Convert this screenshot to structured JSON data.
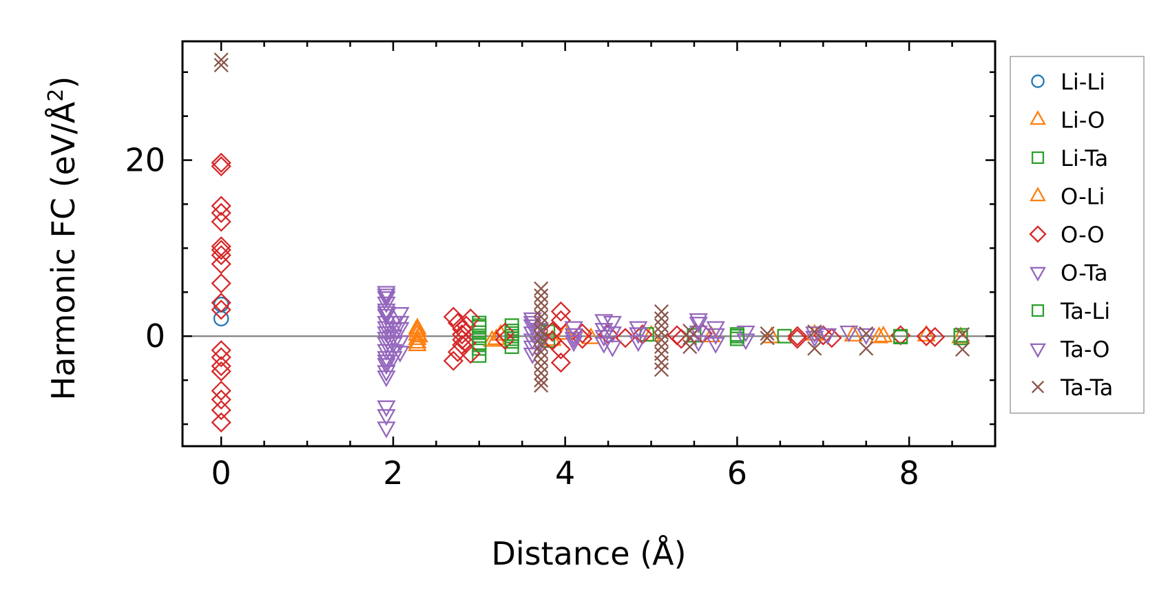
{
  "chart_data": {
    "type": "scatter",
    "title": "",
    "xlabel": "Distance (Å)",
    "ylabel_main": "Harmonic FC (eV/Å",
    "ylabel_sup": "2",
    "ylabel_tail": ")",
    "xlim": [
      -0.45,
      9.0
    ],
    "ylim": [
      -12.5,
      33.5
    ],
    "xticks": [
      0,
      2,
      4,
      6,
      8
    ],
    "xtick_labels": [
      "0",
      "2",
      "4",
      "6",
      "8"
    ],
    "yticks": [
      0,
      20
    ],
    "ytick_labels": [
      "0",
      "20"
    ],
    "zero_line": 0,
    "grid": false,
    "legend_placement": "outside-right",
    "series": [
      {
        "name": "Li-Li",
        "marker": "circle",
        "color": "#1f77b4",
        "points": [
          [
            0,
            2.0
          ],
          [
            0,
            3.6
          ]
        ]
      },
      {
        "name": "Li-O",
        "marker": "triangle-up",
        "color": "#ff7f0e",
        "points": [
          [
            2.28,
            0.6
          ],
          [
            2.28,
            0.2
          ],
          [
            2.28,
            -0.3
          ],
          [
            2.28,
            -0.7
          ],
          [
            2.3,
            0.0
          ],
          [
            3.2,
            -0.3
          ],
          [
            3.25,
            0.2
          ],
          [
            3.85,
            -0.4
          ],
          [
            4.3,
            -0.2
          ],
          [
            5.0,
            0.1
          ],
          [
            6.4,
            -0.1
          ],
          [
            7.35,
            0.1
          ],
          [
            7.7,
            0.0
          ],
          [
            8.2,
            0.1
          ],
          [
            8.6,
            -0.1
          ]
        ]
      },
      {
        "name": "Li-Ta",
        "marker": "square",
        "color": "#2ca02c",
        "points": [
          [
            3.0,
            1.5
          ],
          [
            3.0,
            1.0
          ],
          [
            3.0,
            0.4
          ],
          [
            3.0,
            -0.2
          ],
          [
            3.0,
            -0.8
          ],
          [
            3.0,
            -1.4
          ],
          [
            3.0,
            -2.2
          ],
          [
            3.38,
            1.2
          ],
          [
            3.38,
            0.6
          ],
          [
            3.38,
            0.0
          ],
          [
            3.38,
            -0.6
          ],
          [
            3.38,
            -1.2
          ],
          [
            3.8,
            0.5
          ],
          [
            3.8,
            -0.5
          ],
          [
            4.95,
            0.2
          ],
          [
            5.5,
            0.1
          ],
          [
            6.0,
            0.2
          ],
          [
            6.0,
            -0.3
          ],
          [
            6.55,
            0.0
          ],
          [
            7.9,
            0.0
          ],
          [
            8.6,
            0.1
          ],
          [
            8.6,
            -0.2
          ]
        ]
      },
      {
        "name": "O-Li",
        "marker": "triangle-up",
        "color": "#ff7f0e",
        "points": [
          [
            2.28,
            0.9
          ],
          [
            2.28,
            -1.0
          ],
          [
            3.15,
            -0.5
          ],
          [
            4.0,
            0.3
          ],
          [
            5.7,
            0.0
          ],
          [
            6.9,
            0.2
          ],
          [
            7.65,
            -0.1
          ]
        ]
      },
      {
        "name": "O-O",
        "marker": "diamond",
        "color": "#d62728",
        "points": [
          [
            0,
            19.7
          ],
          [
            0,
            19.3
          ],
          [
            0,
            14.8
          ],
          [
            0,
            14.0
          ],
          [
            0,
            13.0
          ],
          [
            0,
            10.2
          ],
          [
            0,
            9.8
          ],
          [
            0,
            9.2
          ],
          [
            0,
            8.2
          ],
          [
            0,
            6.0
          ],
          [
            0,
            3.8
          ],
          [
            0,
            3.0
          ],
          [
            0,
            -1.6
          ],
          [
            0,
            -2.4
          ],
          [
            0,
            -3.4
          ],
          [
            0,
            -4.0
          ],
          [
            0,
            -6.2
          ],
          [
            0,
            -7.2
          ],
          [
            0,
            -8.4
          ],
          [
            0,
            -9.8
          ],
          [
            2.7,
            2.2
          ],
          [
            2.75,
            1.5
          ],
          [
            2.8,
            0.8
          ],
          [
            2.8,
            0.2
          ],
          [
            2.8,
            -0.4
          ],
          [
            2.8,
            -1.0
          ],
          [
            2.75,
            -1.8
          ],
          [
            2.7,
            -2.8
          ],
          [
            2.85,
            1.2
          ],
          [
            2.85,
            -0.8
          ],
          [
            2.9,
            2.0
          ],
          [
            2.9,
            -2.0
          ],
          [
            3.3,
            0.4
          ],
          [
            3.3,
            -0.4
          ],
          [
            3.95,
            2.8
          ],
          [
            3.95,
            1.8
          ],
          [
            3.95,
            -1.5
          ],
          [
            3.95,
            -3.0
          ],
          [
            3.85,
            0.5
          ],
          [
            3.85,
            -0.5
          ],
          [
            4.2,
            0.3
          ],
          [
            4.2,
            -0.3
          ],
          [
            4.5,
            0.2
          ],
          [
            4.7,
            -0.2
          ],
          [
            4.9,
            0.2
          ],
          [
            5.3,
            0.1
          ],
          [
            5.35,
            -0.3
          ],
          [
            5.6,
            0.3
          ],
          [
            6.7,
            0.0
          ],
          [
            6.7,
            -0.3
          ],
          [
            7.0,
            0.1
          ],
          [
            7.1,
            -0.2
          ],
          [
            7.9,
            0.1
          ],
          [
            8.2,
            0.0
          ],
          [
            8.3,
            -0.1
          ]
        ]
      },
      {
        "name": "O-Ta",
        "marker": "triangle-down",
        "color": "#9467bd",
        "points": [
          [
            1.92,
            5.0
          ],
          [
            1.92,
            4.4
          ],
          [
            1.92,
            3.8
          ],
          [
            1.92,
            3.0
          ],
          [
            1.92,
            2.4
          ],
          [
            1.92,
            1.6
          ],
          [
            1.92,
            1.0
          ],
          [
            1.92,
            0.4
          ],
          [
            1.92,
            -0.2
          ],
          [
            1.92,
            -0.8
          ],
          [
            1.92,
            -1.6
          ],
          [
            1.92,
            -2.4
          ],
          [
            1.92,
            -3.2
          ],
          [
            1.92,
            -4.0
          ],
          [
            1.92,
            -4.6
          ],
          [
            1.92,
            -8.0
          ],
          [
            1.92,
            -9.0
          ],
          [
            1.92,
            -10.4
          ],
          [
            2.0,
            1.6
          ],
          [
            2.0,
            0.8
          ],
          [
            2.0,
            0.0
          ],
          [
            2.0,
            -0.8
          ],
          [
            2.0,
            -1.6
          ],
          [
            2.0,
            -2.4
          ],
          [
            2.08,
            2.6
          ],
          [
            2.08,
            1.6
          ],
          [
            2.08,
            -0.6
          ],
          [
            2.08,
            -1.8
          ],
          [
            3.62,
            2.0
          ],
          [
            3.62,
            1.2
          ],
          [
            3.62,
            0.4
          ],
          [
            3.62,
            -0.4
          ],
          [
            3.62,
            -1.2
          ],
          [
            3.62,
            -2.0
          ],
          [
            3.7,
            0.8
          ],
          [
            3.7,
            -0.8
          ],
          [
            4.1,
            1.0
          ],
          [
            4.1,
            0.2
          ],
          [
            4.1,
            -0.6
          ],
          [
            4.45,
            1.8
          ],
          [
            4.45,
            0.8
          ],
          [
            4.45,
            -0.8
          ],
          [
            4.55,
            1.6
          ],
          [
            4.55,
            0.4
          ],
          [
            4.55,
            -1.2
          ],
          [
            4.85,
            1.0
          ],
          [
            4.85,
            -0.6
          ],
          [
            5.55,
            1.5
          ],
          [
            5.55,
            0.5
          ],
          [
            5.55,
            -0.6
          ],
          [
            5.75,
            1.0
          ],
          [
            5.75,
            -0.8
          ],
          [
            6.1,
            0.5
          ],
          [
            6.1,
            -0.4
          ],
          [
            6.9,
            0.4
          ],
          [
            7.05,
            0.2
          ],
          [
            7.3,
            0.5
          ],
          [
            7.5,
            0.2
          ]
        ]
      },
      {
        "name": "Ta-Li",
        "marker": "square",
        "color": "#2ca02c",
        "points": [
          [
            3.0,
            1.2
          ],
          [
            3.0,
            -1.0
          ],
          [
            3.38,
            0.3
          ],
          [
            3.38,
            -0.3
          ],
          [
            6.0,
            0.0
          ],
          [
            7.9,
            -0.1
          ]
        ]
      },
      {
        "name": "Ta-O",
        "marker": "triangle-down",
        "color": "#9467bd",
        "points": [
          [
            1.92,
            4.7
          ],
          [
            1.92,
            2.7
          ],
          [
            1.92,
            -2.8
          ],
          [
            2.08,
            0.9
          ],
          [
            3.62,
            1.6
          ],
          [
            4.1,
            -0.2
          ],
          [
            4.45,
            0.0
          ],
          [
            4.85,
            0.3
          ],
          [
            5.55,
            1.9
          ],
          [
            5.75,
            0.2
          ],
          [
            6.9,
            -0.1
          ]
        ]
      },
      {
        "name": "Ta-Ta",
        "marker": "cross",
        "color": "#8c564b",
        "points": [
          [
            0,
            31.4
          ],
          [
            0,
            30.8
          ],
          [
            3.72,
            5.4
          ],
          [
            3.72,
            4.6
          ],
          [
            3.72,
            3.8
          ],
          [
            3.72,
            3.0
          ],
          [
            3.72,
            2.2
          ],
          [
            3.72,
            1.4
          ],
          [
            3.72,
            0.6
          ],
          [
            3.72,
            -0.2
          ],
          [
            3.72,
            -1.0
          ],
          [
            3.72,
            -1.8
          ],
          [
            3.72,
            -2.6
          ],
          [
            3.72,
            -3.4
          ],
          [
            3.72,
            -4.2
          ],
          [
            3.72,
            -5.0
          ],
          [
            3.72,
            -5.6
          ],
          [
            5.12,
            2.8
          ],
          [
            5.12,
            2.0
          ],
          [
            5.12,
            1.2
          ],
          [
            5.12,
            0.4
          ],
          [
            5.12,
            -0.4
          ],
          [
            5.12,
            -1.2
          ],
          [
            5.12,
            -2.0
          ],
          [
            5.12,
            -3.0
          ],
          [
            5.12,
            -3.8
          ],
          [
            5.45,
            0.6
          ],
          [
            5.45,
            -0.2
          ],
          [
            5.45,
            -1.2
          ],
          [
            6.35,
            0.3
          ],
          [
            6.35,
            -0.2
          ],
          [
            6.9,
            0.5
          ],
          [
            6.9,
            -1.4
          ],
          [
            7.5,
            0.3
          ],
          [
            7.5,
            -1.4
          ],
          [
            8.62,
            0.2
          ],
          [
            8.62,
            -1.5
          ]
        ]
      }
    ]
  }
}
